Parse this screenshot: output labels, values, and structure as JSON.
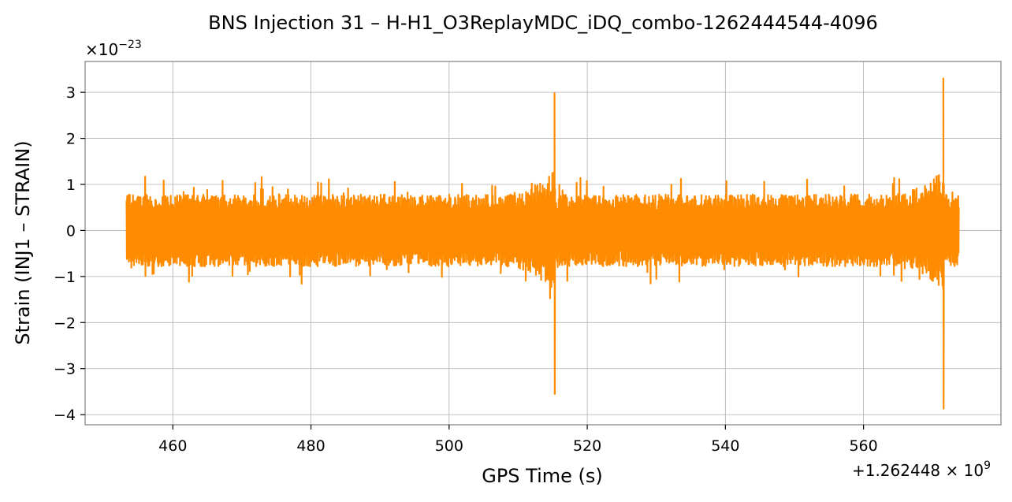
{
  "chart_data": {
    "type": "line",
    "title": "BNS Injection 31 – H-H1_O3ReplayMDC_iDQ_combo-1262444544-4096",
    "xlabel": "GPS Time (s)",
    "ylabel": "Strain (INJ1 – STRAIN)",
    "y_scale_label": "×10",
    "y_scale_exp": "−23",
    "x_offset_label": "+1.262448 × 10",
    "x_offset_exp": "9",
    "x_offset": 1262448000,
    "y_multiplier": 1e-23,
    "xlim": [
      447.3,
      579.9
    ],
    "ylim": [
      -4.22,
      3.67
    ],
    "xticks": [
      460,
      480,
      500,
      520,
      540,
      560
    ],
    "xtick_labels": [
      "460",
      "480",
      "500",
      "520",
      "540",
      "560"
    ],
    "yticks": [
      3,
      2,
      1,
      0,
      -1,
      -2,
      -3,
      -4
    ],
    "ytick_labels": [
      "3",
      "2",
      "1",
      "0",
      "−1",
      "−2",
      "−3",
      "−4"
    ],
    "grid": true,
    "legend": false,
    "series": [
      {
        "color": "#ff8c00",
        "x_range": [
          453.3,
          573.8
        ],
        "typical_amplitude": [
          -0.9,
          0.95
        ],
        "events": [
          {
            "x": 515.3,
            "max": 2.98,
            "min": -3.55
          },
          {
            "x": 571.6,
            "max": 3.3,
            "min": -3.87
          }
        ]
      }
    ]
  }
}
